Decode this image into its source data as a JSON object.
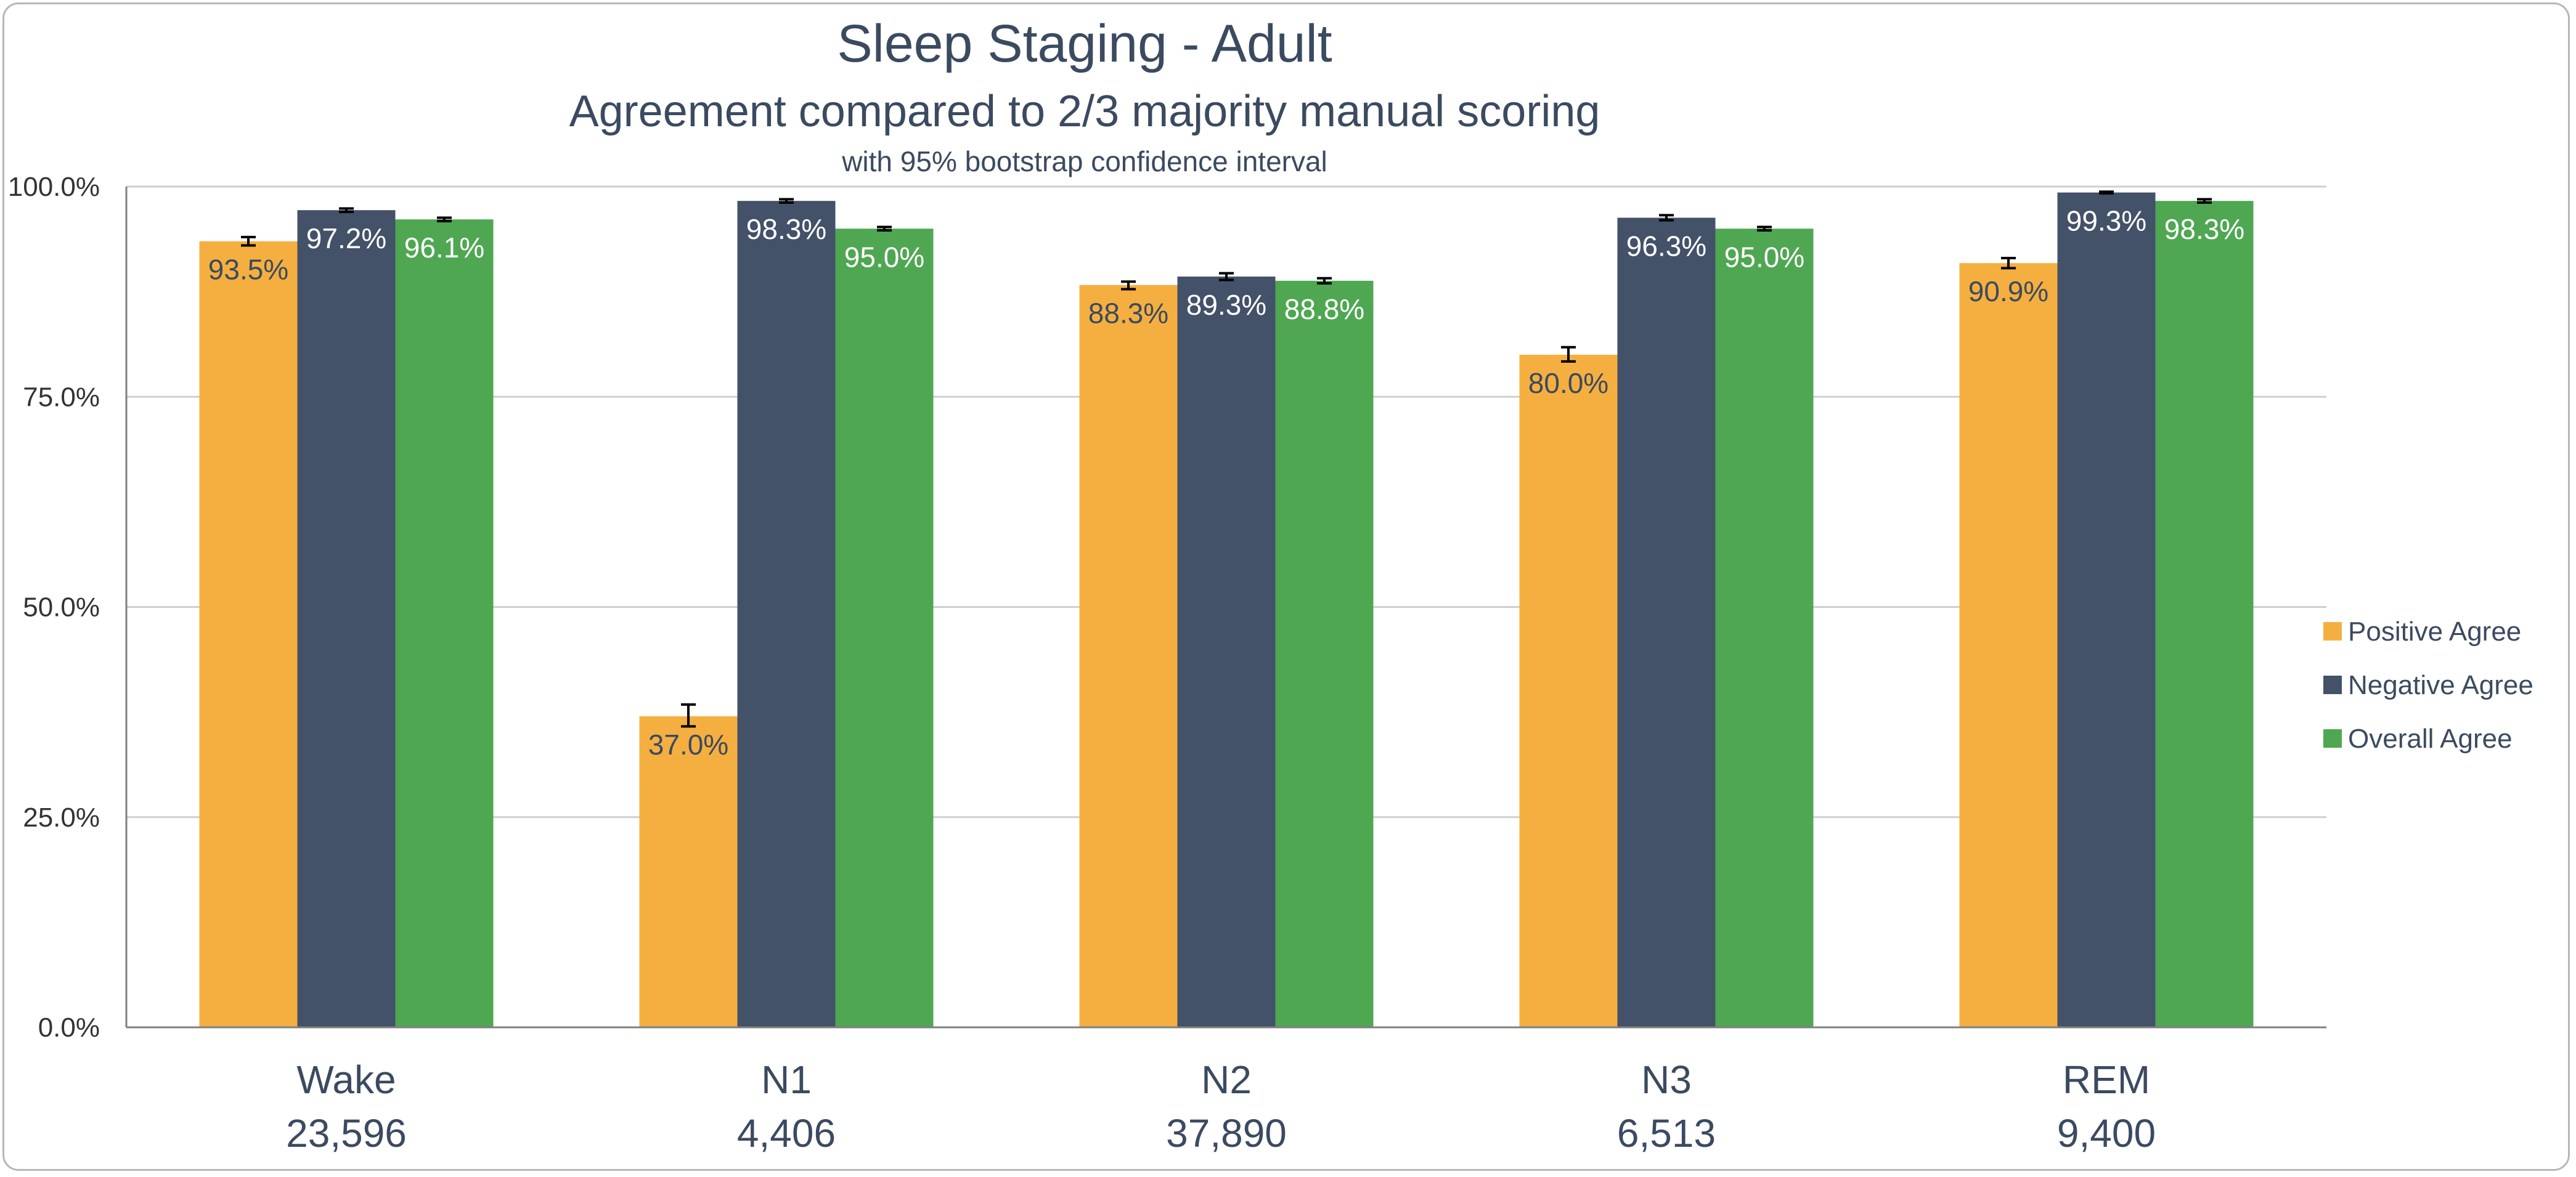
{
  "chart_data": {
    "type": "bar",
    "title": "Sleep Staging - Adult",
    "subtitle": "Agreement compared to 2/3 majority manual scoring",
    "note": "with 95% bootstrap confidence interval",
    "categories": [
      "Wake",
      "N1",
      "N2",
      "N3",
      "REM"
    ],
    "category_counts": [
      "23,596",
      "4,406",
      "37,890",
      "6,513",
      "9,400"
    ],
    "ylim": [
      0,
      100
    ],
    "yticks": [
      0,
      25,
      50,
      75,
      100
    ],
    "ytick_labels": [
      "0.0%",
      "25.0%",
      "50.0%",
      "75.0%",
      "100.0%"
    ],
    "grid": true,
    "legend_position": "right",
    "series": [
      {
        "name": "Positive Agree",
        "color": "#F5AF40",
        "label_color": "#3b4a60",
        "values": [
          93.5,
          37.0,
          88.3,
          80.0,
          90.9
        ],
        "labels": [
          "93.5%",
          "37.0%",
          "88.3%",
          "80.0%",
          "90.9%"
        ],
        "ci_low": [
          93.0,
          35.8,
          87.8,
          79.2,
          90.3
        ],
        "ci_high": [
          94.0,
          38.4,
          88.7,
          80.9,
          91.5
        ]
      },
      {
        "name": "Negative Agree",
        "color": "#435169",
        "label_color": "#ffffff",
        "values": [
          97.2,
          98.3,
          89.3,
          96.3,
          99.3
        ],
        "labels": [
          "97.2%",
          "98.3%",
          "89.3%",
          "96.3%",
          "99.3%"
        ],
        "ci_low": [
          97.0,
          98.1,
          88.9,
          96.0,
          99.2
        ],
        "ci_high": [
          97.4,
          98.5,
          89.7,
          96.6,
          99.4
        ]
      },
      {
        "name": "Overall Agree",
        "color": "#4FA752",
        "label_color": "#ffffff",
        "values": [
          96.1,
          95.0,
          88.8,
          95.0,
          98.3
        ],
        "labels": [
          "96.1%",
          "95.0%",
          "88.8%",
          "95.0%",
          "98.3%"
        ],
        "ci_low": [
          95.9,
          94.8,
          88.5,
          94.8,
          98.1
        ],
        "ci_high": [
          96.3,
          95.2,
          89.1,
          95.2,
          98.5
        ]
      }
    ]
  }
}
